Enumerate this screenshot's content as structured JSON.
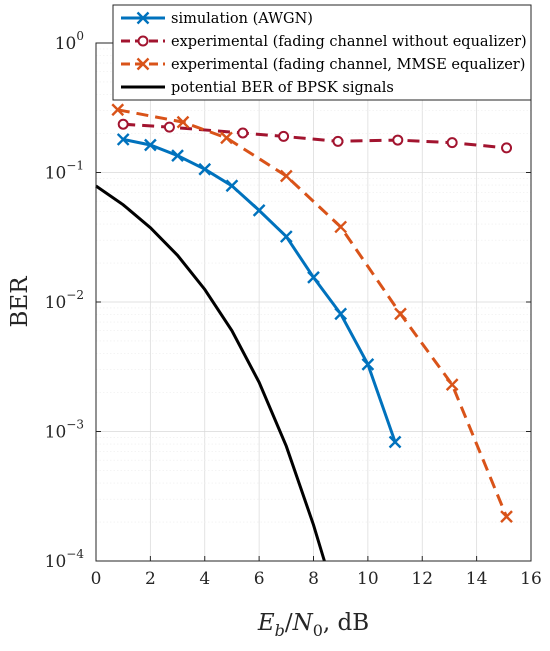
{
  "chart_data": {
    "type": "line",
    "xlabel": "E_b/N_0, dB",
    "ylabel": "BER",
    "xlim": [
      0,
      16
    ],
    "ylim": [
      0.0001,
      1
    ],
    "yscale": "log",
    "grid": "on (major and minor)",
    "legend_position": "top-right",
    "xticks": [
      "0",
      "2",
      "4",
      "6",
      "8",
      "10",
      "12",
      "14",
      "16"
    ],
    "yticks": [
      {
        "value": 1,
        "mantissa": "10",
        "exponent": "0"
      },
      {
        "value": 0.1,
        "mantissa": "10",
        "exponent": "−1"
      },
      {
        "value": 0.01,
        "mantissa": "10",
        "exponent": "−2"
      },
      {
        "value": 0.001,
        "mantissa": "10",
        "exponent": "−3"
      },
      {
        "value": 0.0001,
        "mantissa": "10",
        "exponent": "−4"
      }
    ],
    "series": [
      {
        "name": "simulation (AWGN)",
        "color": "#0072BD",
        "line": "solid",
        "marker": "x",
        "x": [
          1,
          2,
          3,
          4,
          5,
          6,
          7,
          8,
          9,
          10,
          11
        ],
        "y": [
          0.18,
          0.163,
          0.135,
          0.106,
          0.079,
          0.051,
          0.032,
          0.0155,
          0.0081,
          0.0033,
          0.00083
        ]
      },
      {
        "name": "experimental (fading channel without equalizer)",
        "color": "#A2142F",
        "line": "dashed",
        "marker": "o",
        "x": [
          1,
          2.7,
          5.4,
          6.9,
          8.9,
          11.1,
          13.1,
          15.1
        ],
        "y": [
          0.236,
          0.224,
          0.202,
          0.19,
          0.174,
          0.178,
          0.17,
          0.155
        ]
      },
      {
        "name": "experimental (fading channel, MMSE equalizer)",
        "color": "#D95319",
        "line": "dashed",
        "marker": "x",
        "x": [
          0.8,
          3.2,
          4.8,
          7,
          9,
          11.2,
          13.1,
          15.1
        ],
        "y": [
          0.305,
          0.245,
          0.185,
          0.094,
          0.038,
          0.0081,
          0.0023,
          0.00022
        ]
      },
      {
        "name": "potential BER of BPSK signals",
        "color": "#000000",
        "line": "solid",
        "marker": "none",
        "x": [
          0,
          1,
          2,
          3,
          4,
          5,
          6,
          7,
          8,
          8.4
        ],
        "y": [
          0.0786,
          0.0563,
          0.0375,
          0.0229,
          0.0125,
          0.006,
          0.0024,
          0.00077,
          0.00019,
          0.0001
        ]
      }
    ]
  }
}
